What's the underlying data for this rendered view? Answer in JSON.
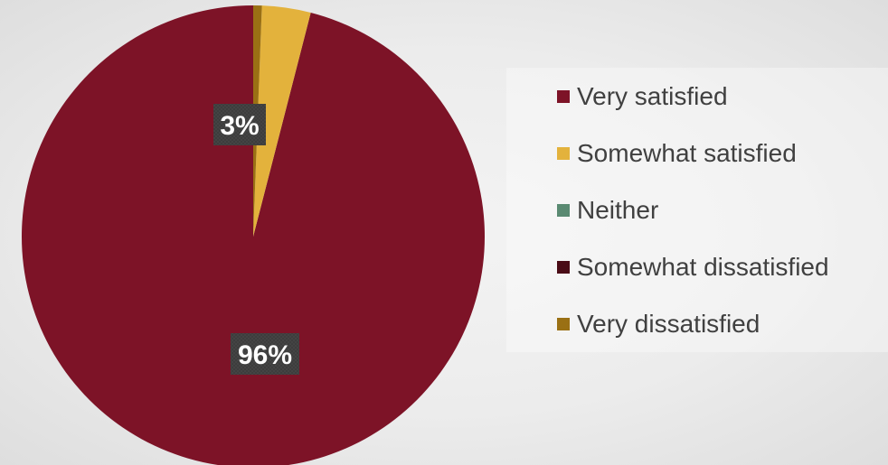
{
  "chart_data": {
    "type": "pie",
    "title": "",
    "legend_position": "right",
    "start_angle_deg": 0,
    "direction": "counterclockwise",
    "slices": [
      {
        "label": "Very satisfied",
        "value": 96,
        "color": "#7d1327",
        "data_label": "96%"
      },
      {
        "label": "Somewhat satisfied",
        "value": 3.4,
        "color": "#e3b23c",
        "data_label": "3%"
      },
      {
        "label": "Neither",
        "value": 0,
        "color": "#5a8a72",
        "data_label": ""
      },
      {
        "label": "Somewhat dissatisfied",
        "value": 0,
        "color": "#4a0c16",
        "data_label": ""
      },
      {
        "label": "Very dissatisfied",
        "value": 0.6,
        "color": "#9a7014",
        "data_label": ""
      }
    ]
  }
}
